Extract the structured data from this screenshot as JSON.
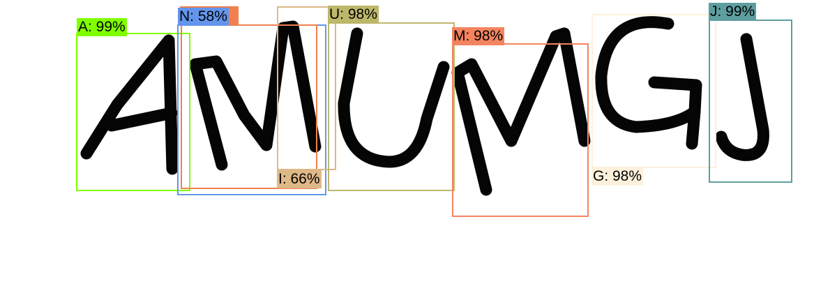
{
  "detections": [
    {
      "id": "a",
      "text": "A: 99%",
      "color": "#7fff00"
    },
    {
      "id": "n",
      "text": "N: 58%",
      "color": "#6495ed"
    },
    {
      "id": "n2",
      "text": "",
      "color": "#f08050"
    },
    {
      "id": "i",
      "text": "I: 66%",
      "color": "#deb887"
    },
    {
      "id": "u",
      "text": "U: 98%",
      "color": "#bdb76b"
    },
    {
      "id": "m",
      "text": "M: 98%",
      "color": "#f4845f"
    },
    {
      "id": "g",
      "text": "G: 98%",
      "color": "#fdf1dc"
    },
    {
      "id": "j",
      "text": "J: 99%",
      "color": "#5f9ea0"
    }
  ]
}
